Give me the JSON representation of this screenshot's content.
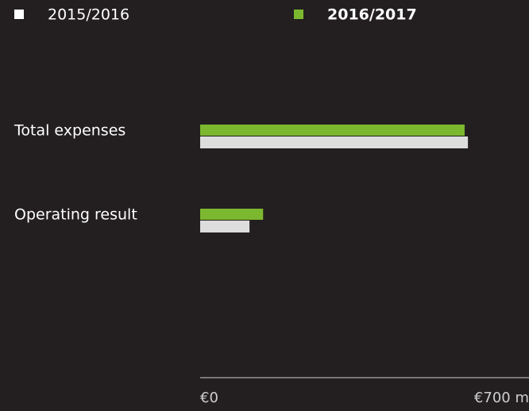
{
  "chart_data": {
    "type": "hbar",
    "categories": [
      "Total expenses",
      "Operating result"
    ],
    "series": [
      {
        "name": "2015/2016",
        "color": "#dddddd",
        "values": [
          570,
          105
        ]
      },
      {
        "name": "2016/2017",
        "color": "#7cb82f",
        "values": [
          563,
          134
        ]
      }
    ],
    "xlim": [
      0,
      700
    ],
    "xticks": [
      {
        "value": 0,
        "label": "€0"
      },
      {
        "value": 700,
        "label": "€700 m"
      }
    ]
  }
}
